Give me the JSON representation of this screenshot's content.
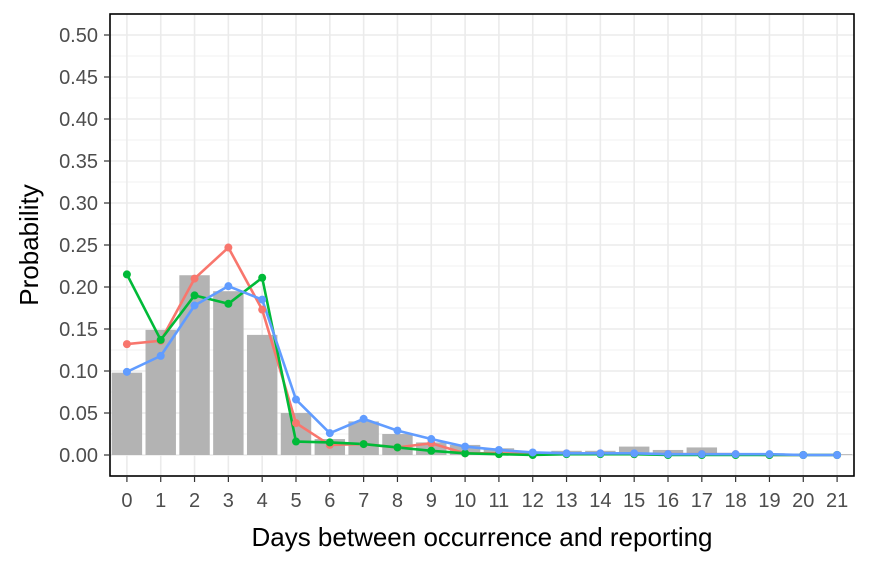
{
  "chart_data": {
    "type": "bar",
    "title": "",
    "xlabel": "Days between occurrence and reporting",
    "ylabel": "Probability",
    "categories": [
      "0",
      "1",
      "2",
      "3",
      "4",
      "5",
      "6",
      "7",
      "8",
      "9",
      "10",
      "11",
      "12",
      "13",
      "14",
      "15",
      "16",
      "17",
      "18",
      "19",
      "20",
      "21"
    ],
    "x": [
      0,
      1,
      2,
      3,
      4,
      5,
      6,
      7,
      8,
      9,
      10,
      11,
      12,
      13,
      14,
      15,
      16,
      17,
      18,
      19,
      20,
      21
    ],
    "ylim": [
      0,
      0.5
    ],
    "xlim": [
      -0.5,
      21.5
    ],
    "yticks": [
      0.0,
      0.05,
      0.1,
      0.15,
      0.2,
      0.25,
      0.3,
      0.35,
      0.4,
      0.45,
      0.5
    ],
    "ytick_labels": [
      "0.00",
      "0.05",
      "0.10",
      "0.15",
      "0.20",
      "0.25",
      "0.30",
      "0.35",
      "0.40",
      "0.45",
      "0.50"
    ],
    "grid": true,
    "legend": "none",
    "bars": {
      "color": "#b3b3b3",
      "values": [
        0.098,
        0.149,
        0.214,
        0.195,
        0.143,
        0.05,
        0.019,
        0.04,
        0.025,
        0.015,
        0.012,
        0.008,
        0.004,
        0.005,
        0.005,
        0.01,
        0.006,
        0.009,
        0.002,
        0.002,
        0.0,
        0.001
      ]
    },
    "series": [
      {
        "color": "#f8766d",
        "values": [
          0.132,
          0.136,
          0.21,
          0.247,
          0.173,
          0.038,
          0.012,
          0.013,
          0.009,
          0.014,
          0.002,
          0.002,
          0.001,
          0.002,
          0.002,
          0.001,
          0.001,
          0.001,
          0.001,
          0.0,
          0.0,
          0.0
        ]
      },
      {
        "color": "#00ba38",
        "values": [
          0.215,
          0.137,
          0.19,
          0.18,
          0.211,
          0.016,
          0.015,
          0.013,
          0.009,
          0.005,
          0.002,
          0.001,
          0.0,
          0.001,
          0.001,
          0.001,
          0.0,
          0.0,
          0.0,
          0.0,
          0.0,
          0.0
        ]
      },
      {
        "color": "#619cff",
        "values": [
          0.099,
          0.118,
          0.178,
          0.201,
          0.185,
          0.066,
          0.026,
          0.043,
          0.029,
          0.019,
          0.01,
          0.006,
          0.003,
          0.002,
          0.002,
          0.002,
          0.001,
          0.001,
          0.001,
          0.001,
          0.0,
          0.0
        ]
      }
    ]
  }
}
